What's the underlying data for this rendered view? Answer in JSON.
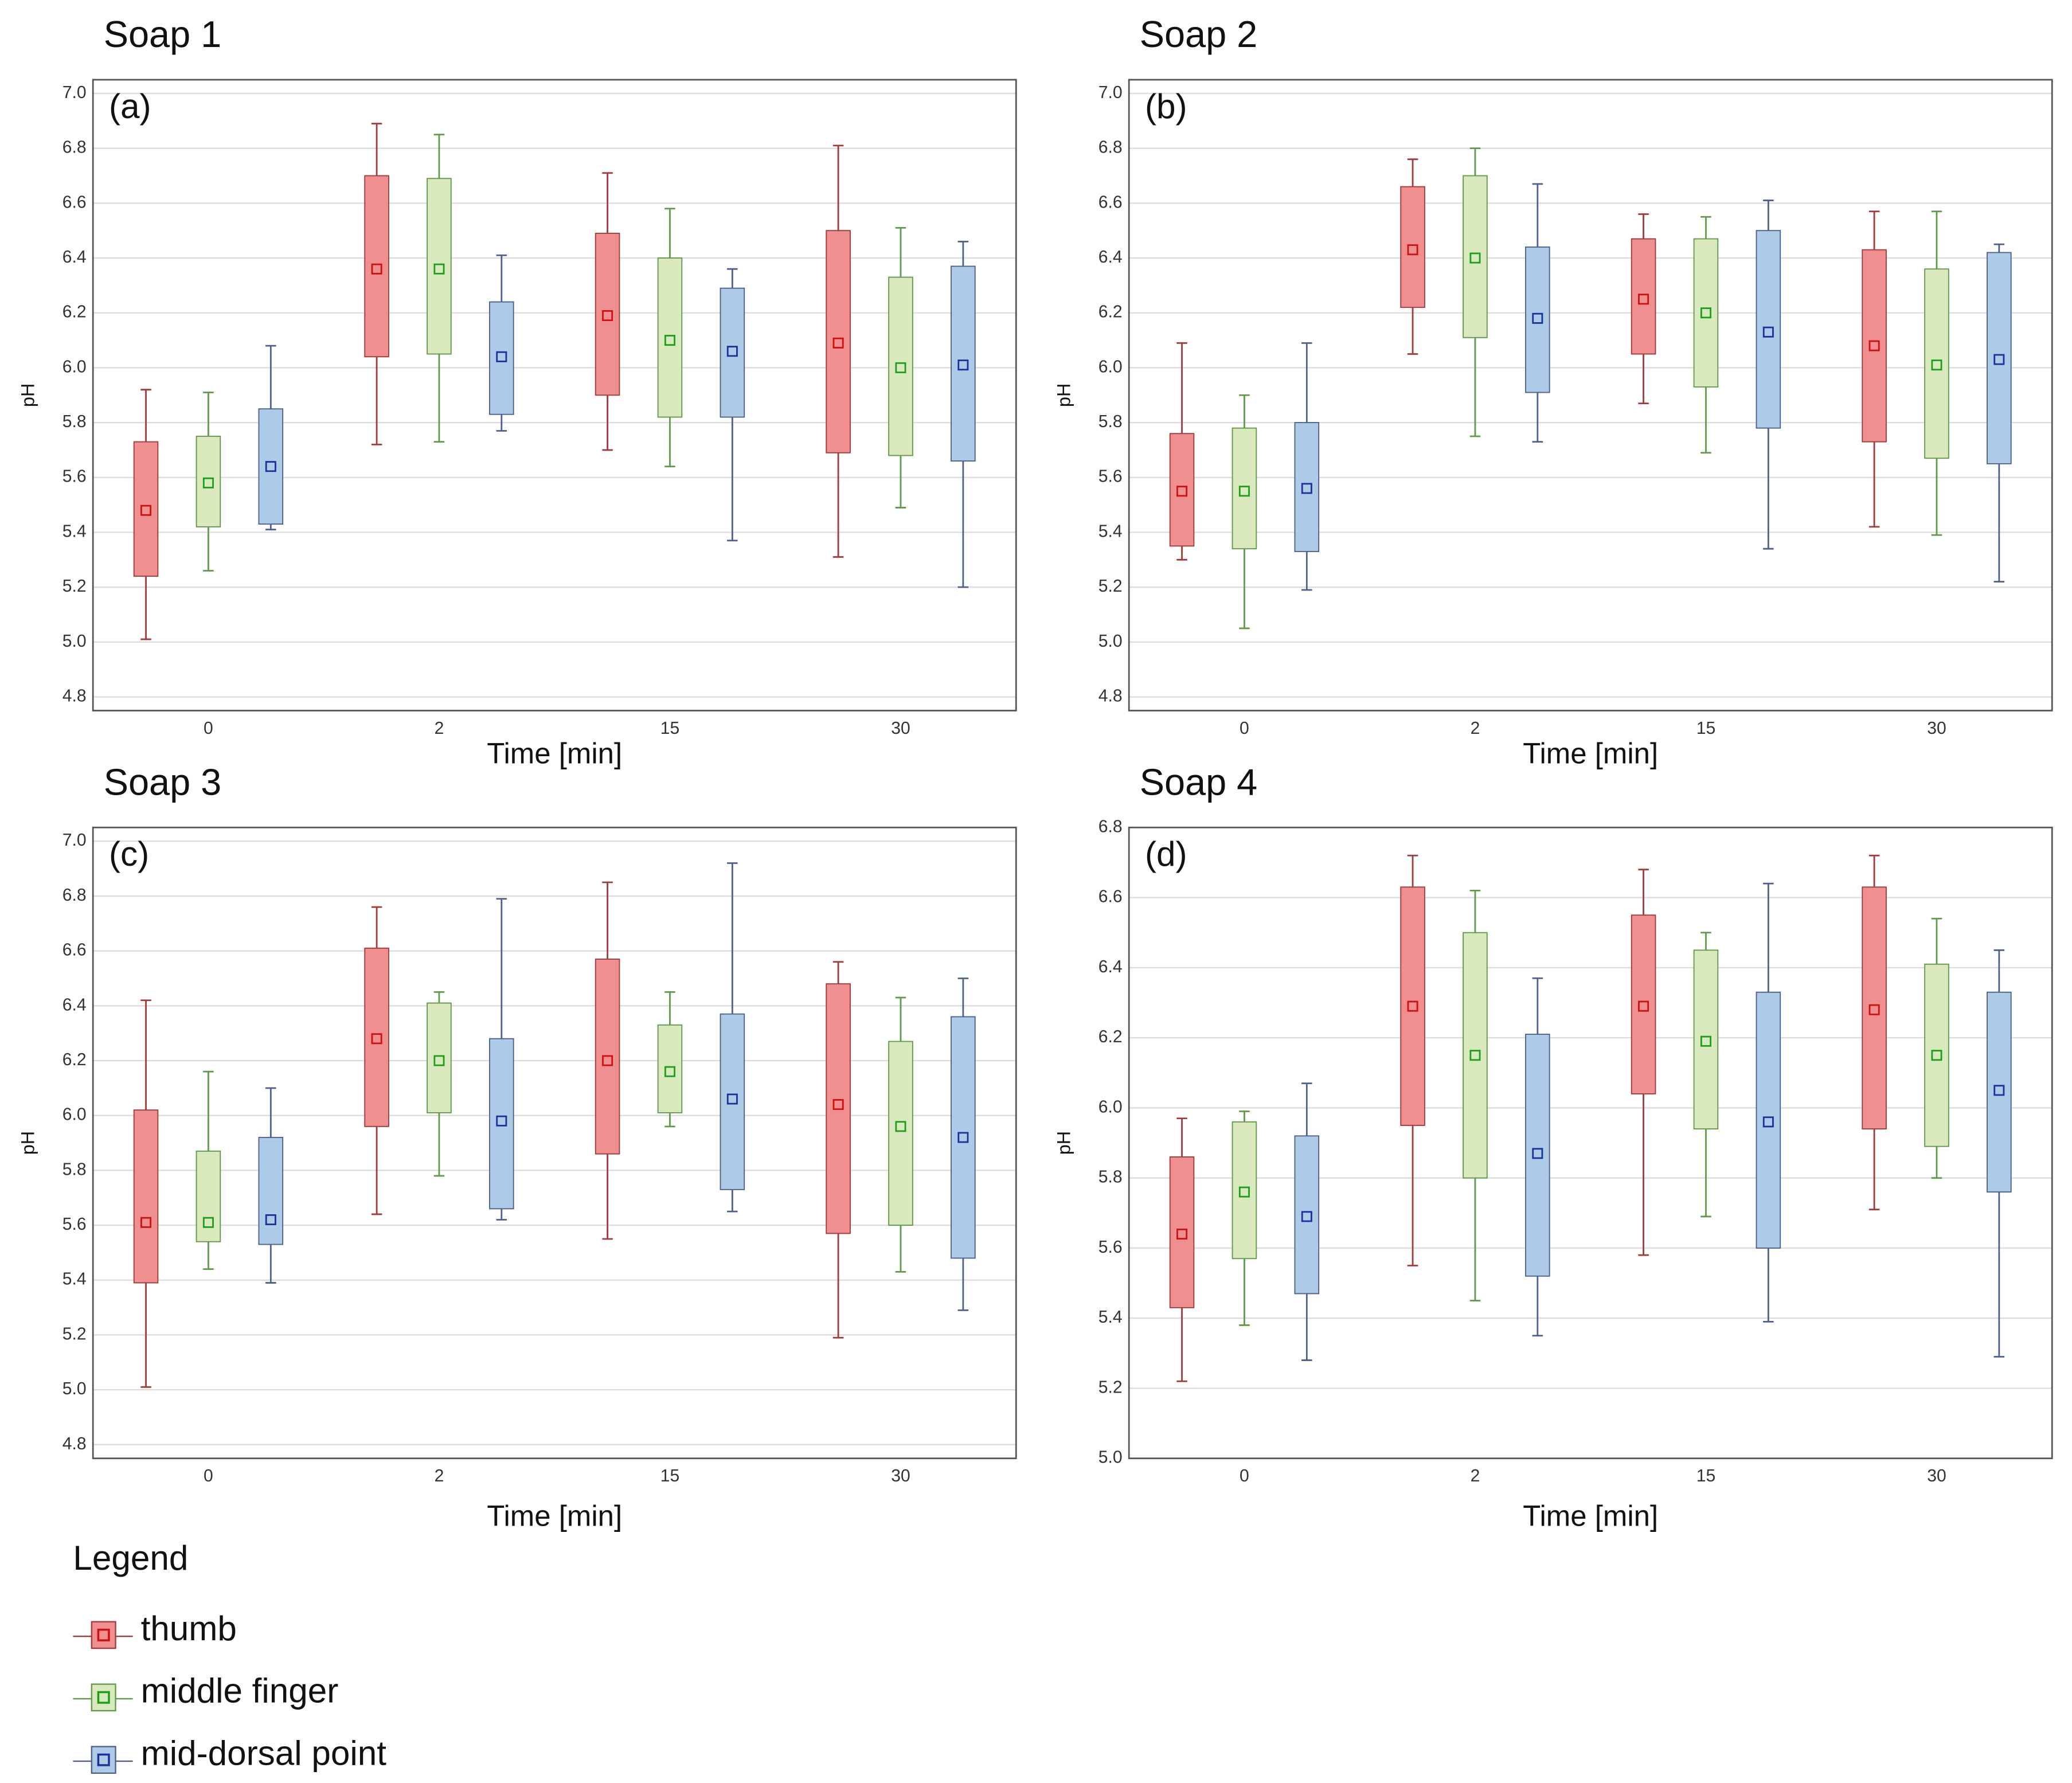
{
  "chart_data": [
    {
      "type": "box",
      "title": "Soap 1",
      "panel_label": "(a)",
      "xlabel": "Time [min]",
      "ylabel": "pH",
      "categories": [
        "0",
        "2",
        "15",
        "30"
      ],
      "ylim": [
        4.75,
        7.05
      ],
      "yticks": [
        {
          "value": 4.8,
          "label": "4.8"
        },
        {
          "value": 5.0,
          "label": "5.0"
        },
        {
          "value": 5.2,
          "label": "5.2"
        },
        {
          "value": 5.4,
          "label": "5.4"
        },
        {
          "value": 5.6,
          "label": "5.6"
        },
        {
          "value": 5.8,
          "label": "5.8"
        },
        {
          "value": 6.0,
          "label": "6.0"
        },
        {
          "value": 6.2,
          "label": "6.2"
        },
        {
          "value": 6.4,
          "label": "6.4"
        },
        {
          "value": 6.6,
          "label": "6.6"
        },
        {
          "value": 6.8,
          "label": "6.8"
        },
        {
          "value": 7.0,
          "label": "7.0"
        }
      ],
      "grid": true,
      "series": [
        {
          "name": "thumb",
          "color": "#ef8f8f",
          "line_color": "#a33a3a",
          "marker_color": "#d01010",
          "values": [
            {
              "min": 5.01,
              "q1": 5.24,
              "mean": 5.48,
              "q3": 5.73,
              "max": 5.92
            },
            {
              "min": 5.72,
              "q1": 6.04,
              "mean": 6.36,
              "q3": 6.7,
              "max": 6.89
            },
            {
              "min": 5.7,
              "q1": 5.9,
              "mean": 6.19,
              "q3": 6.49,
              "max": 6.71
            },
            {
              "min": 5.31,
              "q1": 5.69,
              "mean": 6.09,
              "q3": 6.5,
              "max": 6.81
            }
          ]
        },
        {
          "name": "middle finger",
          "color": "#d9e8bd",
          "line_color": "#5e9a48",
          "marker_color": "#18a018",
          "values": [
            {
              "min": 5.26,
              "q1": 5.42,
              "mean": 5.58,
              "q3": 5.75,
              "max": 5.91
            },
            {
              "min": 5.73,
              "q1": 6.05,
              "mean": 6.36,
              "q3": 6.69,
              "max": 6.85
            },
            {
              "min": 5.64,
              "q1": 5.82,
              "mean": 6.1,
              "q3": 6.4,
              "max": 6.58
            },
            {
              "min": 5.49,
              "q1": 5.68,
              "mean": 6.0,
              "q3": 6.33,
              "max": 6.51
            }
          ]
        },
        {
          "name": "mid-dorsal point",
          "color": "#adcbe6",
          "line_color": "#4d5f8f",
          "marker_color": "#1a2fa0",
          "values": [
            {
              "min": 5.41,
              "q1": 5.43,
              "mean": 5.64,
              "q3": 5.85,
              "max": 6.08
            },
            {
              "min": 5.77,
              "q1": 5.83,
              "mean": 6.04,
              "q3": 6.24,
              "max": 6.41
            },
            {
              "min": 5.37,
              "q1": 5.82,
              "mean": 6.06,
              "q3": 6.29,
              "max": 6.36
            },
            {
              "min": 5.2,
              "q1": 5.66,
              "mean": 6.01,
              "q3": 6.37,
              "max": 6.46
            }
          ]
        }
      ]
    },
    {
      "type": "box",
      "title": "Soap 2",
      "panel_label": "(b)",
      "xlabel": "Time [min]",
      "ylabel": "pH",
      "categories": [
        "0",
        "2",
        "15",
        "30"
      ],
      "ylim": [
        4.75,
        7.05
      ],
      "yticks": [
        {
          "value": 4.8,
          "label": "4.8"
        },
        {
          "value": 5.0,
          "label": "5.0"
        },
        {
          "value": 5.2,
          "label": "5.2"
        },
        {
          "value": 5.4,
          "label": "5.4"
        },
        {
          "value": 5.6,
          "label": "5.6"
        },
        {
          "value": 5.8,
          "label": "5.8"
        },
        {
          "value": 6.0,
          "label": "6.0"
        },
        {
          "value": 6.2,
          "label": "6.2"
        },
        {
          "value": 6.4,
          "label": "6.4"
        },
        {
          "value": 6.6,
          "label": "6.6"
        },
        {
          "value": 6.8,
          "label": "6.8"
        },
        {
          "value": 7.0,
          "label": "7.0"
        }
      ],
      "grid": true,
      "series": [
        {
          "name": "thumb",
          "color": "#ef8f8f",
          "line_color": "#a33a3a",
          "marker_color": "#d01010",
          "values": [
            {
              "min": 5.3,
              "q1": 5.35,
              "mean": 5.55,
              "q3": 5.76,
              "max": 6.09
            },
            {
              "min": 6.05,
              "q1": 6.22,
              "mean": 6.43,
              "q3": 6.66,
              "max": 6.76
            },
            {
              "min": 5.87,
              "q1": 6.05,
              "mean": 6.25,
              "q3": 6.47,
              "max": 6.56
            },
            {
              "min": 5.42,
              "q1": 5.73,
              "mean": 6.08,
              "q3": 6.43,
              "max": 6.57
            }
          ]
        },
        {
          "name": "middle finger",
          "color": "#d9e8bd",
          "line_color": "#5e9a48",
          "marker_color": "#18a018",
          "values": [
            {
              "min": 5.05,
              "q1": 5.34,
              "mean": 5.55,
              "q3": 5.78,
              "max": 5.9
            },
            {
              "min": 5.75,
              "q1": 6.11,
              "mean": 6.4,
              "q3": 6.7,
              "max": 6.8
            },
            {
              "min": 5.69,
              "q1": 5.93,
              "mean": 6.2,
              "q3": 6.47,
              "max": 6.55
            },
            {
              "min": 5.39,
              "q1": 5.67,
              "mean": 6.01,
              "q3": 6.36,
              "max": 6.57
            }
          ]
        },
        {
          "name": "mid-dorsal point",
          "color": "#adcbe6",
          "line_color": "#4d5f8f",
          "marker_color": "#1a2fa0",
          "values": [
            {
              "min": 5.19,
              "q1": 5.33,
              "mean": 5.56,
              "q3": 5.8,
              "max": 6.09
            },
            {
              "min": 5.73,
              "q1": 5.91,
              "mean": 6.18,
              "q3": 6.44,
              "max": 6.67
            },
            {
              "min": 5.34,
              "q1": 5.78,
              "mean": 6.13,
              "q3": 6.5,
              "max": 6.61
            },
            {
              "min": 5.22,
              "q1": 5.65,
              "mean": 6.03,
              "q3": 6.42,
              "max": 6.45
            }
          ]
        }
      ]
    },
    {
      "type": "box",
      "title": "Soap 3",
      "panel_label": "(c)",
      "xlabel": "Time [min]",
      "ylabel": "pH",
      "categories": [
        "0",
        "2",
        "15",
        "30"
      ],
      "ylim": [
        4.75,
        7.05
      ],
      "yticks": [
        {
          "value": 4.8,
          "label": "4.8"
        },
        {
          "value": 5.0,
          "label": "5.0"
        },
        {
          "value": 5.2,
          "label": "5.2"
        },
        {
          "value": 5.4,
          "label": "5.4"
        },
        {
          "value": 5.6,
          "label": "5.6"
        },
        {
          "value": 5.8,
          "label": "5.8"
        },
        {
          "value": 6.0,
          "label": "6.0"
        },
        {
          "value": 6.2,
          "label": "6.2"
        },
        {
          "value": 6.4,
          "label": "6.4"
        },
        {
          "value": 6.6,
          "label": "6.6"
        },
        {
          "value": 6.8,
          "label": "6.8"
        },
        {
          "value": 7.0,
          "label": "7.0"
        }
      ],
      "grid": true,
      "series": [
        {
          "name": "thumb",
          "color": "#ef8f8f",
          "line_color": "#a33a3a",
          "marker_color": "#d01010",
          "values": [
            {
              "min": 5.01,
              "q1": 5.39,
              "mean": 5.61,
              "q3": 6.02,
              "max": 6.42
            },
            {
              "min": 5.64,
              "q1": 5.96,
              "mean": 6.28,
              "q3": 6.61,
              "max": 6.76
            },
            {
              "min": 5.55,
              "q1": 5.86,
              "mean": 6.2,
              "q3": 6.57,
              "max": 6.85
            },
            {
              "min": 5.19,
              "q1": 5.57,
              "mean": 6.04,
              "q3": 6.48,
              "max": 6.56
            }
          ]
        },
        {
          "name": "middle finger",
          "color": "#d9e8bd",
          "line_color": "#5e9a48",
          "marker_color": "#18a018",
          "values": [
            {
              "min": 5.44,
              "q1": 5.54,
              "mean": 5.61,
              "q3": 5.87,
              "max": 6.16
            },
            {
              "min": 5.78,
              "q1": 6.01,
              "mean": 6.2,
              "q3": 6.41,
              "max": 6.45
            },
            {
              "min": 5.96,
              "q1": 6.01,
              "mean": 6.16,
              "q3": 6.33,
              "max": 6.45
            },
            {
              "min": 5.43,
              "q1": 5.6,
              "mean": 5.96,
              "q3": 6.27,
              "max": 6.43
            }
          ]
        },
        {
          "name": "mid-dorsal point",
          "color": "#adcbe6",
          "line_color": "#4d5f8f",
          "marker_color": "#1a2fa0",
          "values": [
            {
              "min": 5.39,
              "q1": 5.53,
              "mean": 5.62,
              "q3": 5.92,
              "max": 6.1
            },
            {
              "min": 5.62,
              "q1": 5.66,
              "mean": 5.98,
              "q3": 6.28,
              "max": 6.79
            },
            {
              "min": 5.65,
              "q1": 5.73,
              "mean": 6.06,
              "q3": 6.37,
              "max": 6.92
            },
            {
              "min": 5.29,
              "q1": 5.48,
              "mean": 5.92,
              "q3": 6.36,
              "max": 6.5
            }
          ]
        }
      ]
    },
    {
      "type": "box",
      "title": "Soap 4",
      "panel_label": "(d)",
      "xlabel": "Time [min]",
      "ylabel": "pH",
      "categories": [
        "0",
        "2",
        "15",
        "30"
      ],
      "ylim": [
        5.0,
        6.8
      ],
      "yticks": [
        {
          "value": 5.0,
          "label": "5.0"
        },
        {
          "value": 5.2,
          "label": "5.2"
        },
        {
          "value": 5.4,
          "label": "5.4"
        },
        {
          "value": 5.6,
          "label": "5.6"
        },
        {
          "value": 5.8,
          "label": "5.8"
        },
        {
          "value": 6.0,
          "label": "6.0"
        },
        {
          "value": 6.2,
          "label": "6.2"
        },
        {
          "value": 6.4,
          "label": "6.4"
        },
        {
          "value": 6.6,
          "label": "6.6"
        },
        {
          "value": 6.8,
          "label": "6.8"
        }
      ],
      "grid": true,
      "series": [
        {
          "name": "thumb",
          "color": "#ef8f8f",
          "line_color": "#a33a3a",
          "marker_color": "#d01010",
          "values": [
            {
              "min": 5.22,
              "q1": 5.43,
              "mean": 5.64,
              "q3": 5.86,
              "max": 5.97
            },
            {
              "min": 5.55,
              "q1": 5.95,
              "mean": 6.29,
              "q3": 6.63,
              "max": 6.72
            },
            {
              "min": 5.58,
              "q1": 6.04,
              "mean": 6.29,
              "q3": 6.55,
              "max": 6.68
            },
            {
              "min": 5.71,
              "q1": 5.94,
              "mean": 6.28,
              "q3": 6.63,
              "max": 6.72
            }
          ]
        },
        {
          "name": "middle finger",
          "color": "#d9e8bd",
          "line_color": "#5e9a48",
          "marker_color": "#18a018",
          "values": [
            {
              "min": 5.38,
              "q1": 5.57,
              "mean": 5.76,
              "q3": 5.96,
              "max": 5.99
            },
            {
              "min": 5.45,
              "q1": 5.8,
              "mean": 6.15,
              "q3": 6.5,
              "max": 6.62
            },
            {
              "min": 5.69,
              "q1": 5.94,
              "mean": 6.19,
              "q3": 6.45,
              "max": 6.5
            },
            {
              "min": 5.8,
              "q1": 5.89,
              "mean": 6.15,
              "q3": 6.41,
              "max": 6.54
            }
          ]
        },
        {
          "name": "mid-dorsal point",
          "color": "#adcbe6",
          "line_color": "#4d5f8f",
          "marker_color": "#1a2fa0",
          "values": [
            {
              "min": 5.28,
              "q1": 5.47,
              "mean": 5.69,
              "q3": 5.92,
              "max": 6.07
            },
            {
              "min": 5.35,
              "q1": 5.52,
              "mean": 5.87,
              "q3": 6.21,
              "max": 6.37
            },
            {
              "min": 5.39,
              "q1": 5.6,
              "mean": 5.96,
              "q3": 6.33,
              "max": 6.64
            },
            {
              "min": 5.29,
              "q1": 5.76,
              "mean": 6.05,
              "q3": 6.33,
              "max": 6.45
            }
          ]
        }
      ]
    }
  ],
  "legend": {
    "title": "Legend"
  }
}
